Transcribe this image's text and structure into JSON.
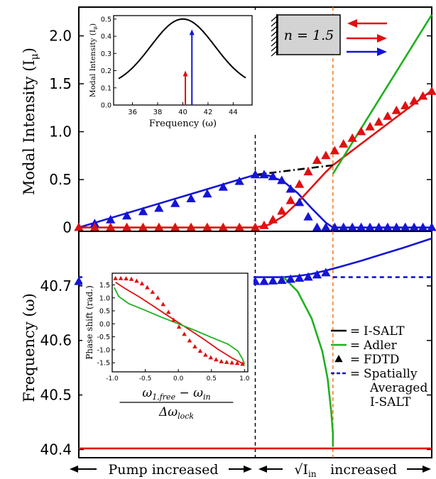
{
  "colors": {
    "red": "#e01010",
    "blue": "#1414d6",
    "green": "#1fb01f",
    "black": "#000000",
    "orange": "#f07820",
    "box_fill": "#d3d3d3"
  },
  "chart_data": [
    {
      "id": "top",
      "type": "line",
      "ylabel": "Modal Intensity (I",
      "ylabel_sub": "μ",
      "ylabel_close": ")",
      "xlim": [
        0,
        1
      ],
      "ylim": [
        -0.04,
        2.3
      ],
      "yticks": [
        0,
        0.5,
        1.0,
        1.5,
        2.0
      ],
      "ytick_labels": [
        "0",
        "0.5",
        "1.0",
        "1.5",
        "2.0"
      ],
      "series": [
        {
          "color": "blue",
          "style": "solid",
          "x": [
            0,
            0.5,
            0.54,
            0.58,
            0.62,
            0.66,
            0.7,
            0.72
          ],
          "y": [
            0,
            0.55,
            0.54,
            0.48,
            0.36,
            0.2,
            0.05,
            0
          ]
        },
        {
          "color": "blue",
          "style": "solid",
          "x": [
            0.72,
            1.0
          ],
          "y": [
            0,
            0
          ]
        },
        {
          "color": "red",
          "style": "solid",
          "x": [
            0,
            0.5
          ],
          "y": [
            0,
            0
          ]
        },
        {
          "color": "red",
          "style": "solid",
          "x": [
            0.5,
            0.54,
            0.58,
            0.62,
            0.66,
            0.7,
            0.72
          ],
          "y": [
            0,
            0.03,
            0.12,
            0.26,
            0.42,
            0.58,
            0.65
          ]
        },
        {
          "color": "red",
          "style": "solid",
          "x": [
            0.72,
            1.0
          ],
          "y": [
            0.65,
            1.43
          ]
        },
        {
          "color": "black",
          "style": "dashdot",
          "x": [
            0.5,
            0.72
          ],
          "y": [
            0.55,
            0.65
          ]
        },
        {
          "color": "green",
          "style": "solid",
          "x": [
            0.72,
            1.0
          ],
          "y": [
            0.56,
            2.22
          ]
        }
      ],
      "markers": [
        {
          "color": "blue",
          "x": [
            0,
            0.045,
            0.09,
            0.136,
            0.182,
            0.227,
            0.273,
            0.318,
            0.364,
            0.409,
            0.455,
            0.5,
            0.525,
            0.55,
            0.575,
            0.6,
            0.625,
            0.65,
            0.675,
            0.7,
            0.725,
            0.75,
            0.775,
            0.8,
            0.825,
            0.85,
            0.875,
            0.9,
            0.925,
            0.95,
            0.975,
            1.0
          ],
          "y": [
            0,
            0.04,
            0.08,
            0.12,
            0.165,
            0.2,
            0.25,
            0.3,
            0.35,
            0.42,
            0.48,
            0.55,
            0.55,
            0.53,
            0.49,
            0.4,
            0.26,
            0.11,
            0.0,
            0,
            0,
            0,
            0,
            0,
            0,
            0,
            0,
            0,
            0,
            0,
            0,
            0
          ]
        },
        {
          "color": "red",
          "x": [
            0,
            0.045,
            0.09,
            0.136,
            0.182,
            0.227,
            0.273,
            0.318,
            0.364,
            0.409,
            0.455,
            0.5,
            0.525,
            0.55,
            0.575,
            0.6,
            0.625,
            0.65,
            0.675,
            0.7,
            0.725,
            0.75,
            0.775,
            0.8,
            0.825,
            0.85,
            0.875,
            0.9,
            0.925,
            0.95,
            0.975,
            1.0
          ],
          "y": [
            0,
            0,
            0,
            0,
            0,
            0,
            0,
            0,
            0,
            0,
            0,
            0,
            0.02,
            0.08,
            0.17,
            0.28,
            0.45,
            0.58,
            0.7,
            0.75,
            0.8,
            0.87,
            0.93,
            1.0,
            1.05,
            1.1,
            1.16,
            1.22,
            1.27,
            1.32,
            1.37,
            1.42
          ]
        }
      ],
      "vlines": [
        {
          "x": 0.5,
          "color": "black",
          "style": "dashed"
        },
        {
          "x": 0.72,
          "color": "orange",
          "style": "dashed"
        }
      ],
      "box_label": "n = 1.5"
    },
    {
      "id": "bottom",
      "type": "line",
      "ylabel": "Frequency (ω)",
      "xlim": [
        0,
        1
      ],
      "ylim": [
        40.385,
        40.8
      ],
      "yticks": [
        40.4,
        40.5,
        40.6,
        40.7
      ],
      "ytick_labels": [
        "40.4",
        "40.5",
        "40.6",
        "40.7"
      ],
      "series": [
        {
          "color": "red",
          "style": "solid",
          "x": [
            0,
            1
          ],
          "y": [
            40.402,
            40.402
          ]
        },
        {
          "color": "blue",
          "style": "solid",
          "x": [
            0,
            0.58,
            0.62,
            0.66,
            0.7,
            0.74,
            0.8,
            0.86,
            0.92,
            1.0
          ],
          "y": [
            40.716,
            40.716,
            40.718,
            40.722,
            40.728,
            40.735,
            40.746,
            40.758,
            40.77,
            40.787
          ]
        },
        {
          "color": "blue",
          "style": "dashed",
          "x": [
            0.72,
            1.0
          ],
          "y": [
            40.716,
            40.716
          ]
        },
        {
          "color": "green",
          "style": "solid",
          "x": [
            0.58,
            0.62,
            0.66,
            0.69,
            0.705,
            0.715,
            0.72,
            0.72
          ],
          "y": [
            40.716,
            40.69,
            40.64,
            40.58,
            40.53,
            40.47,
            40.43,
            40.405
          ]
        }
      ],
      "markers": [
        {
          "color": "blue",
          "x": [
            0,
            0.045,
            0.09,
            0.136,
            0.182,
            0.227,
            0.273,
            0.318,
            0.364,
            0.409,
            0.455,
            0.5,
            0.525,
            0.55,
            0.575,
            0.6,
            0.625,
            0.65,
            0.675,
            0.7
          ],
          "y": [
            40.708,
            40.708,
            40.708,
            40.708,
            40.708,
            40.708,
            40.708,
            40.708,
            40.708,
            40.708,
            40.708,
            40.708,
            40.708,
            40.709,
            40.71,
            40.712,
            40.714,
            40.716,
            40.72,
            40.724
          ]
        }
      ],
      "vlines": [
        {
          "x": 0.5,
          "color": "black",
          "style": "dashed"
        },
        {
          "x": 0.72,
          "color": "orange",
          "style": "dashed"
        }
      ],
      "legend": [
        {
          "symbol": "line",
          "color": "black",
          "label": "I-SALT"
        },
        {
          "symbol": "line",
          "color": "green",
          "label": "Adler"
        },
        {
          "symbol": "triangle",
          "color": "black",
          "label": "FDTD"
        },
        {
          "symbol": "dashed",
          "color": "blue",
          "label": "Spatially",
          "label2": "Averaged",
          "label3": "I-SALT"
        }
      ],
      "legend_eq": "="
    },
    {
      "id": "inset-top",
      "type": "line",
      "xlabel": "Frequency (ω)",
      "ylabel": "Modal Intensity (I",
      "ylabel_sub": "μ",
      "ylabel_close": ")",
      "xlim": [
        34.5,
        45.5
      ],
      "ylim": [
        0,
        0.52
      ],
      "xticks": [
        36,
        38,
        40,
        42,
        44
      ],
      "xtick_labels": [
        "36",
        "38",
        "40",
        "42",
        "44"
      ],
      "yticks": [
        0.0,
        0.1,
        0.2,
        0.3,
        0.4,
        0.5
      ],
      "ytick_labels": [
        "0.0",
        "0.1",
        "0.2",
        "0.3",
        "0.4",
        "0.5"
      ],
      "curve": {
        "center": 40.0,
        "peak": 0.5,
        "base": 0.1,
        "width": 3.6
      },
      "arrows": [
        {
          "color": "red",
          "x": 40.2,
          "y": 0.2
        },
        {
          "color": "blue",
          "x": 40.72,
          "y": 0.44
        }
      ]
    },
    {
      "id": "inset-bottom",
      "type": "line",
      "ylabel": "Phase shift (rad.)",
      "xlabel_num": "ω",
      "xlabel_num_sub": "1,free",
      "xlabel_num_mid": " − ω",
      "xlabel_num_sub2": "in",
      "xlabel_den": "Δω",
      "xlabel_den_sub": "lock",
      "xlim": [
        -1.0,
        1.05
      ],
      "ylim": [
        -1.85,
        1.95
      ],
      "xticks": [
        -1.0,
        -0.5,
        0.0,
        0.5,
        1.0
      ],
      "xtick_labels": [
        "-1.0",
        "-0.5",
        "0.0",
        "0.5",
        "1.0"
      ],
      "yticks": [
        -1.5,
        -1.0,
        -0.5,
        0.0,
        0.5,
        1.0,
        1.5
      ],
      "ytick_labels": [
        "-1.5",
        "-1.0",
        "-0.5",
        "0.0",
        "0.5",
        "1.0",
        "1.5"
      ],
      "series": [
        {
          "color": "red",
          "x": [
            -0.95,
            -0.8,
            -0.6,
            -0.4,
            -0.2,
            0,
            0.2,
            0.4,
            0.6,
            0.8,
            0.95,
            1.0
          ],
          "y": [
            1.6,
            1.35,
            1.05,
            0.72,
            0.38,
            0.05,
            -0.28,
            -0.62,
            -0.98,
            -1.3,
            -1.5,
            -1.55
          ]
        },
        {
          "color": "green",
          "x": [
            -0.97,
            -0.9,
            -0.75,
            -0.5,
            -0.25,
            0,
            0.25,
            0.5,
            0.75,
            0.9,
            0.97,
            1.0
          ],
          "y": [
            1.4,
            1.05,
            0.78,
            0.52,
            0.25,
            0.0,
            -0.25,
            -0.52,
            -0.78,
            -1.05,
            -1.35,
            -1.55
          ]
        }
      ],
      "markers": [
        {
          "color": "red",
          "x": [
            -0.95,
            -0.87,
            -0.79,
            -0.71,
            -0.63,
            -0.55,
            -0.47,
            -0.39,
            -0.31,
            -0.23,
            -0.15,
            -0.07,
            0.01,
            0.09,
            0.17,
            0.25,
            0.33,
            0.41,
            0.49,
            0.57,
            0.65,
            0.73,
            0.81,
            0.89,
            0.97
          ],
          "y": [
            1.75,
            1.75,
            1.74,
            1.72,
            1.65,
            1.55,
            1.4,
            1.22,
            1.0,
            0.75,
            0.45,
            0.15,
            -0.12,
            -0.4,
            -0.65,
            -0.88,
            -1.05,
            -1.2,
            -1.3,
            -1.38,
            -1.45,
            -1.48,
            -1.5,
            -1.52,
            -1.55
          ]
        }
      ]
    }
  ],
  "bottom_axis": {
    "left_text": "Pump increased",
    "right_text": "increased",
    "right_math": "√I",
    "right_math_sub": "in"
  }
}
